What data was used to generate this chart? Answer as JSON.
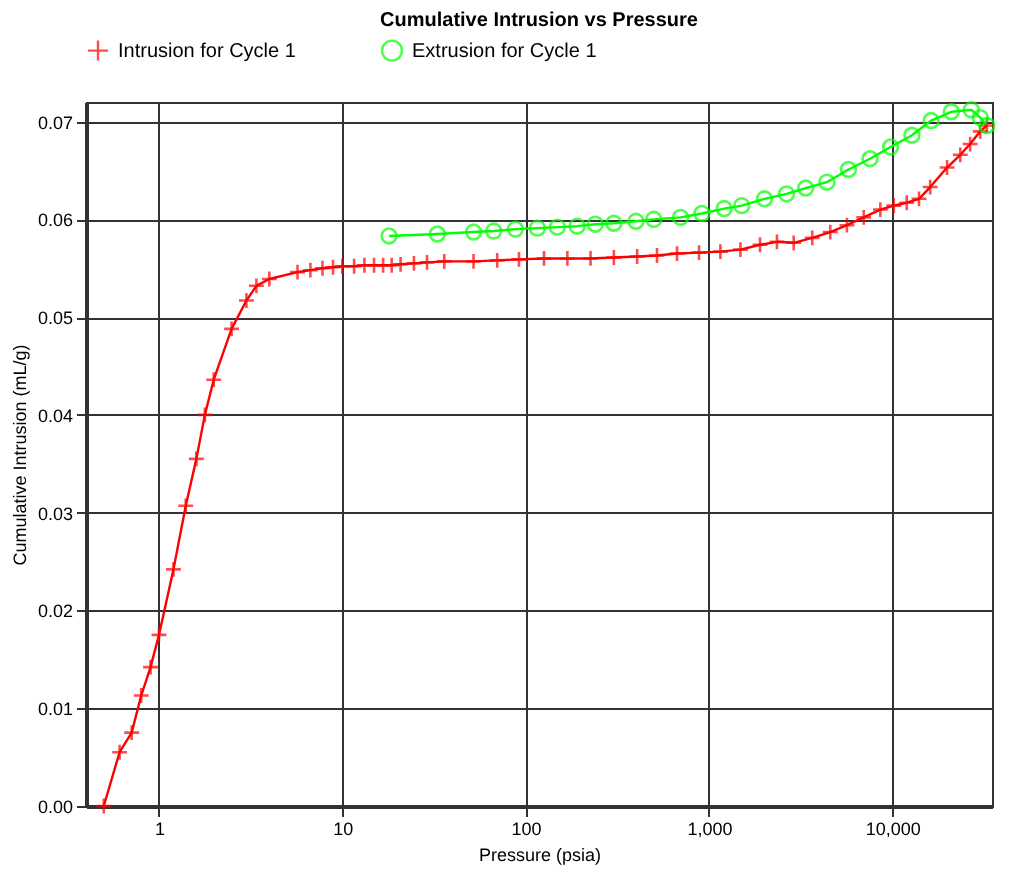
{
  "chart_data": {
    "type": "line",
    "title": "Cumulative Intrusion vs Pressure",
    "xlabel": "Pressure (psia)",
    "ylabel": "Cumulative Intrusion (mL/g)",
    "log": "x",
    "xlim": [
      0.4,
      35000
    ],
    "ylim": [
      0,
      0.072
    ],
    "xticks": [
      1,
      10,
      100,
      {
        "value": 1000,
        "label": "1,000"
      },
      {
        "value": 10000,
        "label": "10,000"
      }
    ],
    "yticks": [
      {
        "value": 0,
        "label": "0.00"
      },
      {
        "value": 0.01,
        "label": "0.01"
      },
      {
        "value": 0.02,
        "label": "0.02"
      },
      {
        "value": 0.03,
        "label": "0.03"
      },
      {
        "value": 0.04,
        "label": "0.04"
      },
      {
        "value": 0.05,
        "label": "0.05"
      },
      {
        "value": 0.06,
        "label": "0.06"
      },
      {
        "value": 0.07,
        "label": "0.07"
      }
    ],
    "grid": true,
    "legend": "top left",
    "series": [
      {
        "name": "Intrusion for Cycle 1",
        "color": "#ff0000",
        "marker": "cross",
        "line_style": "solid",
        "x": [
          0.5,
          0.61,
          0.71,
          0.8,
          0.9,
          1.0,
          1.2,
          1.4,
          1.6,
          1.78,
          1.99,
          2.49,
          3.0,
          3.4,
          4.0,
          5.7,
          6.7,
          7.8,
          8.9,
          10,
          11.6,
          13.2,
          14.9,
          16.7,
          18.6,
          20.8,
          24.6,
          29,
          36,
          52,
          70,
          92,
          126,
          169,
          226,
          303,
          406,
          521,
          670,
          883,
          1155,
          1486,
          1900,
          2350,
          2900,
          3660,
          4590,
          5660,
          6990,
          8610,
          10200,
          12000,
          14000,
          16100,
          19900,
          23500,
          26600,
          30200,
          32800
        ],
        "values": [
          0,
          0.0055,
          0.0075,
          0.0113,
          0.0142,
          0.0175,
          0.0242,
          0.0307,
          0.0355,
          0.04,
          0.0436,
          0.0488,
          0.0517,
          0.0532,
          0.0539,
          0.0546,
          0.0548,
          0.055,
          0.0551,
          0.0552,
          0.0552,
          0.0553,
          0.0553,
          0.0553,
          0.0553,
          0.0554,
          0.0555,
          0.0556,
          0.0557,
          0.0557,
          0.0558,
          0.0559,
          0.056,
          0.056,
          0.056,
          0.0561,
          0.0562,
          0.0563,
          0.0565,
          0.0566,
          0.0567,
          0.0569,
          0.0574,
          0.0577,
          0.0576,
          0.0581,
          0.0587,
          0.0594,
          0.0602,
          0.061,
          0.0614,
          0.0617,
          0.0621,
          0.0633,
          0.0653,
          0.0666,
          0.0677,
          0.069,
          0.0696
        ]
      },
      {
        "name": "Extrusion for Cycle 1",
        "color": "#00ff00",
        "marker": "circle",
        "line_style": "solid",
        "x": [
          32800,
          30200,
          27000,
          21000,
          16300,
          12800,
          9800,
          7560,
          5770,
          4400,
          3370,
          2650,
          2010,
          1510,
          1210,
          915,
          700,
          500,
          400,
          303,
          240,
          191,
          149,
          116,
          88,
          67,
          52,
          33,
          18
        ],
        "values": [
          0.0696,
          0.0704,
          0.0712,
          0.071,
          0.0701,
          0.0686,
          0.0674,
          0.0662,
          0.0651,
          0.0638,
          0.0632,
          0.0626,
          0.0621,
          0.0614,
          0.0611,
          0.0606,
          0.0602,
          0.06,
          0.0598,
          0.0596,
          0.0595,
          0.0593,
          0.0592,
          0.0591,
          0.059,
          0.0588,
          0.0587,
          0.0585,
          0.0583
        ]
      }
    ]
  }
}
